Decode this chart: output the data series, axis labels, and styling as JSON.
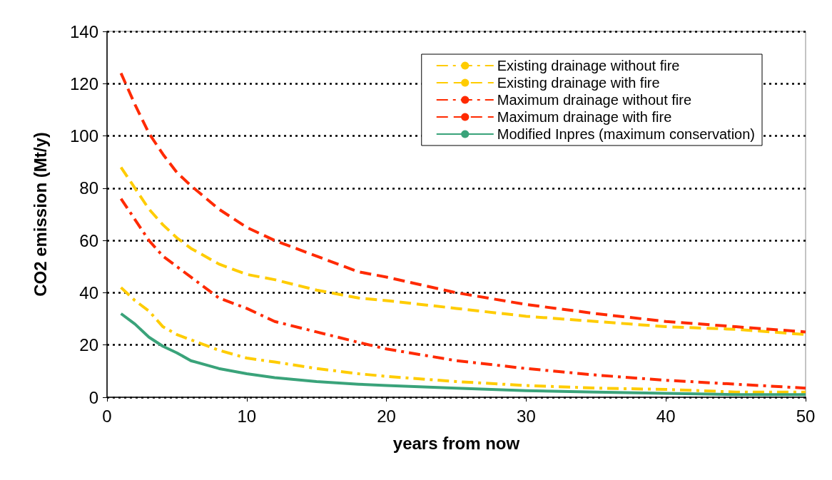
{
  "chart_data": {
    "type": "line",
    "xlabel": "years from now",
    "ylabel": "CO2 emission (Mt/y)",
    "x": [
      1,
      2,
      3,
      4,
      5,
      6,
      8,
      10,
      12,
      15,
      18,
      20,
      25,
      30,
      35,
      40,
      45,
      50
    ],
    "series": [
      {
        "name": "Existing drainage without fire",
        "color": "#ffcc00",
        "line_style": "dashdot",
        "values": [
          42,
          37,
          33,
          27,
          24,
          22,
          18,
          15,
          13.5,
          11,
          9,
          8,
          6,
          4.5,
          3.5,
          3,
          2,
          2
        ]
      },
      {
        "name": "Existing drainage with fire",
        "color": "#ffcc00",
        "line_style": "dashed",
        "values": [
          88,
          80,
          72,
          66,
          61,
          57,
          51,
          47,
          45,
          41,
          38,
          37,
          34,
          31,
          29,
          27,
          26,
          24
        ]
      },
      {
        "name": "Maximum drainage without fire",
        "color": "#ff2a00",
        "line_style": "dashdot",
        "values": [
          76,
          68,
          60,
          54,
          50,
          46,
          38,
          34,
          29,
          25,
          21,
          18.5,
          14,
          11,
          8.5,
          6.5,
          5,
          3.5
        ]
      },
      {
        "name": "Maximum drainage with fire",
        "color": "#ff2a00",
        "line_style": "dashed",
        "values": [
          124,
          112,
          101,
          93,
          86,
          81,
          72,
          65,
          60,
          54,
          48,
          46,
          40,
          35.5,
          32,
          29,
          27,
          25
        ]
      },
      {
        "name": "Modified Inpres (maximum conservation)",
        "color": "#3aa37a",
        "line_style": "solid",
        "values": [
          32,
          28,
          23,
          19.5,
          17,
          14,
          11,
          9,
          7.5,
          6,
          5,
          4.5,
          3.5,
          2.5,
          2,
          1.5,
          1,
          1
        ]
      }
    ],
    "xlim": [
      0,
      50
    ],
    "xticks": [
      0,
      10,
      20,
      30,
      40,
      50
    ],
    "ylim": [
      0,
      140
    ],
    "yticks": [
      0,
      20,
      40,
      60,
      80,
      100,
      120,
      140
    ],
    "grid": "y",
    "legend": "top right",
    "marker": "none"
  }
}
